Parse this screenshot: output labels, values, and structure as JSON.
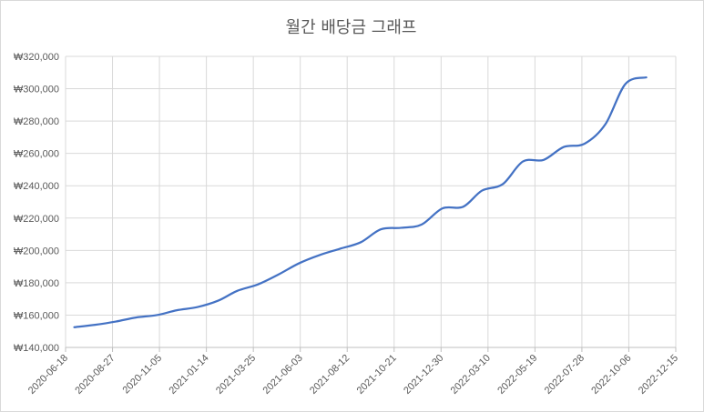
{
  "chart_data": {
    "type": "line",
    "title": "월간 배당금 그래프",
    "xlabel": "",
    "ylabel": "",
    "ylim": [
      140000,
      320000
    ],
    "yticks": [
      140000,
      160000,
      180000,
      200000,
      220000,
      240000,
      260000,
      280000,
      300000,
      320000
    ],
    "ytick_labels": [
      "₩140,000",
      "₩160,000",
      "₩180,000",
      "₩200,000",
      "₩220,000",
      "₩240,000",
      "₩260,000",
      "₩280,000",
      "₩300,000",
      "₩320,000"
    ],
    "xlim": [
      "2020-06-18",
      "2022-12-15"
    ],
    "xtick_labels": [
      "2020-06-18",
      "2020-08-27",
      "2020-11-05",
      "2021-01-14",
      "2021-03-25",
      "2021-06-03",
      "2021-08-12",
      "2021-10-21",
      "2021-12-30",
      "2022-03-10",
      "2022-05-19",
      "2022-07-28",
      "2022-10-06",
      "2022-12-15"
    ],
    "grid": true,
    "series": [
      {
        "color": "#4472c4",
        "x": [
          "2020-07-01",
          "2020-08-01",
          "2020-09-01",
          "2020-10-01",
          "2020-11-01",
          "2020-12-01",
          "2021-01-01",
          "2021-02-01",
          "2021-03-01",
          "2021-04-01",
          "2021-05-01",
          "2021-06-01",
          "2021-07-01",
          "2021-08-01",
          "2021-09-01",
          "2021-10-01",
          "2021-11-01",
          "2021-12-01",
          "2022-01-01",
          "2022-02-01",
          "2022-03-01",
          "2022-04-01",
          "2022-05-01",
          "2022-06-01",
          "2022-07-01",
          "2022-08-01",
          "2022-09-01",
          "2022-10-01",
          "2022-11-01"
        ],
        "values": [
          152500,
          154000,
          156000,
          158500,
          160000,
          163000,
          165000,
          169000,
          175000,
          179000,
          185000,
          192000,
          197000,
          201000,
          205000,
          213000,
          214000,
          216000,
          226000,
          227000,
          237000,
          241000,
          255000,
          256000,
          264000,
          266000,
          278000,
          303000,
          307000
        ]
      }
    ]
  }
}
